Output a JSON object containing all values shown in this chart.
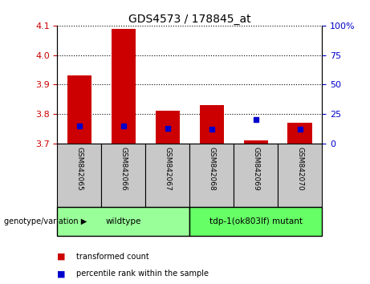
{
  "title": "GDS4573 / 178845_at",
  "samples": [
    "GSM842065",
    "GSM842066",
    "GSM842067",
    "GSM842068",
    "GSM842069",
    "GSM842070"
  ],
  "transformed_counts": [
    3.93,
    4.09,
    3.81,
    3.83,
    3.71,
    3.77
  ],
  "percentile_ranks": [
    15,
    15,
    13,
    12,
    20,
    12
  ],
  "ylim_left": [
    3.7,
    4.1
  ],
  "ylim_right": [
    0,
    100
  ],
  "yticks_left": [
    3.7,
    3.8,
    3.9,
    4.0,
    4.1
  ],
  "yticks_right": [
    0,
    25,
    50,
    75,
    100
  ],
  "bar_color": "#cc0000",
  "dot_color": "#0000cc",
  "groups": [
    {
      "label": "wildtype",
      "samples": [
        0,
        1,
        2
      ],
      "color": "#99ff99"
    },
    {
      "label": "tdp-1(ok803lf) mutant",
      "samples": [
        3,
        4,
        5
      ],
      "color": "#66ff66"
    }
  ],
  "left_axis_color": "#cc0000",
  "right_axis_color": "#0000cc",
  "genotype_label": "genotype/variation",
  "legend_red": "transformed count",
  "legend_blue": "percentile rank within the sample",
  "sample_box_color": "#c8c8c8"
}
